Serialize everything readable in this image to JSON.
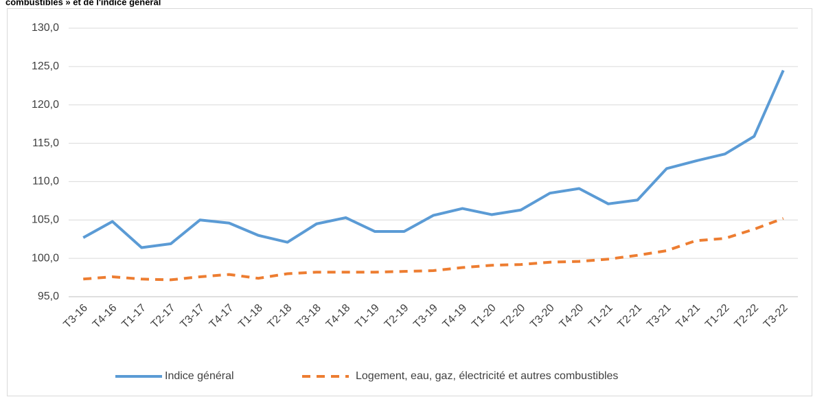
{
  "chart_data": {
    "type": "line",
    "title": "combustibles » et de l'indice général",
    "categories": [
      "T3-16",
      "T4-16",
      "T1-17",
      "T2-17",
      "T3-17",
      "T4-17",
      "T1-18",
      "T2-18",
      "T3-18",
      "T4-18",
      "T1-19",
      "T2-19",
      "T3-19",
      "T4-19",
      "T1-20",
      "T2-20",
      "T3-20",
      "T4-20",
      "T1-21",
      "T2-21",
      "T3-21",
      "T4-21",
      "T1-22",
      "T2-22",
      "T3-22"
    ],
    "series": [
      {
        "name": "Indice général",
        "color": "#5b9bd5",
        "dashed": false,
        "values": [
          102.7,
          104.8,
          101.4,
          101.9,
          105.0,
          104.6,
          103.0,
          102.1,
          104.5,
          105.3,
          103.5,
          103.5,
          105.6,
          106.5,
          105.7,
          106.3,
          108.5,
          109.1,
          107.1,
          107.6,
          111.7,
          112.7,
          113.6,
          115.9,
          124.5
        ]
      },
      {
        "name": "Logement, eau, gaz, électricité et autres combustibles",
        "color": "#ed7d31",
        "dashed": true,
        "values": [
          97.3,
          97.6,
          97.3,
          97.2,
          97.6,
          97.9,
          97.4,
          98.0,
          98.2,
          98.2,
          98.2,
          98.3,
          98.4,
          98.8,
          99.1,
          99.2,
          99.5,
          99.6,
          99.9,
          100.4,
          101.0,
          102.3,
          102.6,
          103.8,
          105.2
        ]
      }
    ],
    "ylim": [
      95,
      130
    ],
    "yticks": [
      {
        "value": 95,
        "label": "95,0"
      },
      {
        "value": 100,
        "label": "100,0"
      },
      {
        "value": 105,
        "label": "105,0"
      },
      {
        "value": 110,
        "label": "110,0"
      },
      {
        "value": 115,
        "label": "115,0"
      },
      {
        "value": 120,
        "label": "120,0"
      },
      {
        "value": 125,
        "label": "125,0"
      },
      {
        "value": 130,
        "label": "130,0"
      }
    ],
    "grid": true,
    "legend": "bottom"
  }
}
